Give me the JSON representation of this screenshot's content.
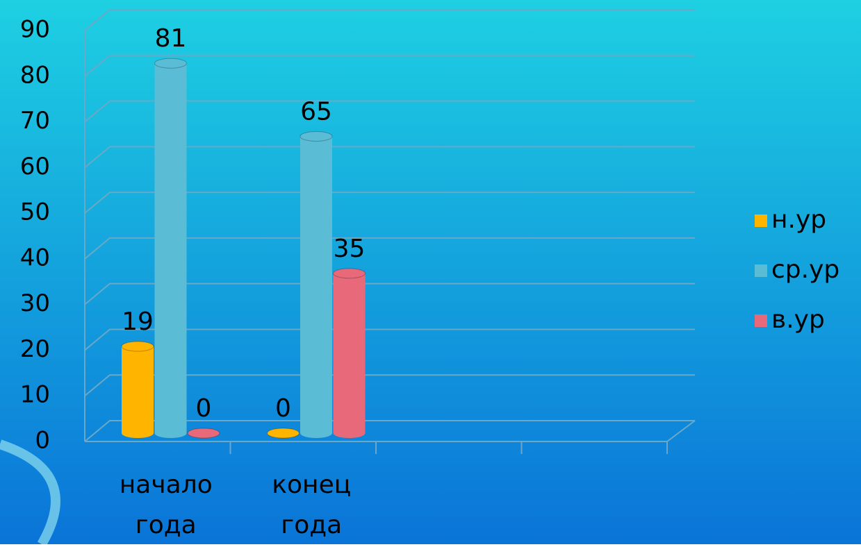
{
  "chart_data": {
    "type": "bar3d",
    "categories": [
      "начало года",
      "конец года",
      null,
      null
    ],
    "series": [
      {
        "name": "н.ур",
        "color": "#ffb400",
        "values": [
          19,
          0,
          null,
          null
        ]
      },
      {
        "name": "ср.ур",
        "color": "#5bbcd6",
        "values": [
          81,
          65,
          null,
          null
        ]
      },
      {
        "name": "в.ур",
        "color": "#e8697a",
        "values": [
          0,
          35,
          null,
          null
        ]
      }
    ],
    "ylim": [
      0,
      90
    ],
    "yticks": [
      0,
      10,
      20,
      30,
      40,
      50,
      60,
      70,
      80,
      90
    ],
    "grid": true,
    "legend": "right"
  }
}
